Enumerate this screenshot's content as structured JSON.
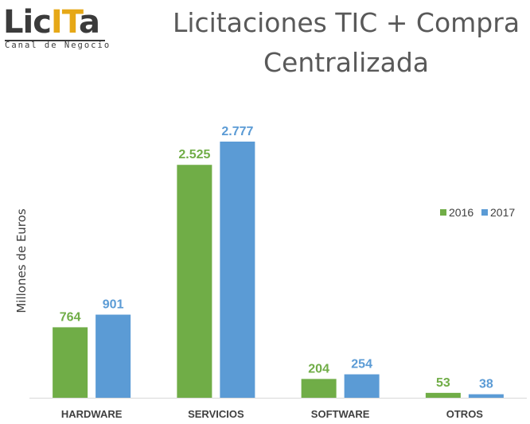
{
  "logo": {
    "word_dark_left": "Lic",
    "word_accent": "IT",
    "word_dark_right": "a",
    "tagline": "Canal de Negocio"
  },
  "colors": {
    "series_2016": "#70ad47",
    "series_2017": "#5b9bd5",
    "axis": "#d9d9d9",
    "logo_accent": "#e6a817"
  },
  "chart_data": {
    "type": "bar",
    "title": "Licitaciones TIC + Compra Centralizada",
    "title_lines": [
      "Licitaciones TIC + Compra",
      "Centralizada"
    ],
    "xlabel": "",
    "ylabel": "Millones de Euros",
    "categories": [
      "HARDWARE",
      "SERVICIOS",
      "SOFTWARE",
      "OTROS"
    ],
    "series": [
      {
        "name": "2016",
        "values": [
          764,
          2525,
          204,
          53
        ],
        "labels": [
          "764",
          "2.525",
          "204",
          "53"
        ]
      },
      {
        "name": "2017",
        "values": [
          901,
          2777,
          254,
          38
        ],
        "labels": [
          "901",
          "2.777",
          "254",
          "38"
        ]
      }
    ],
    "ylim": [
      0,
      2777
    ],
    "grid": false,
    "legend_position": "right"
  }
}
